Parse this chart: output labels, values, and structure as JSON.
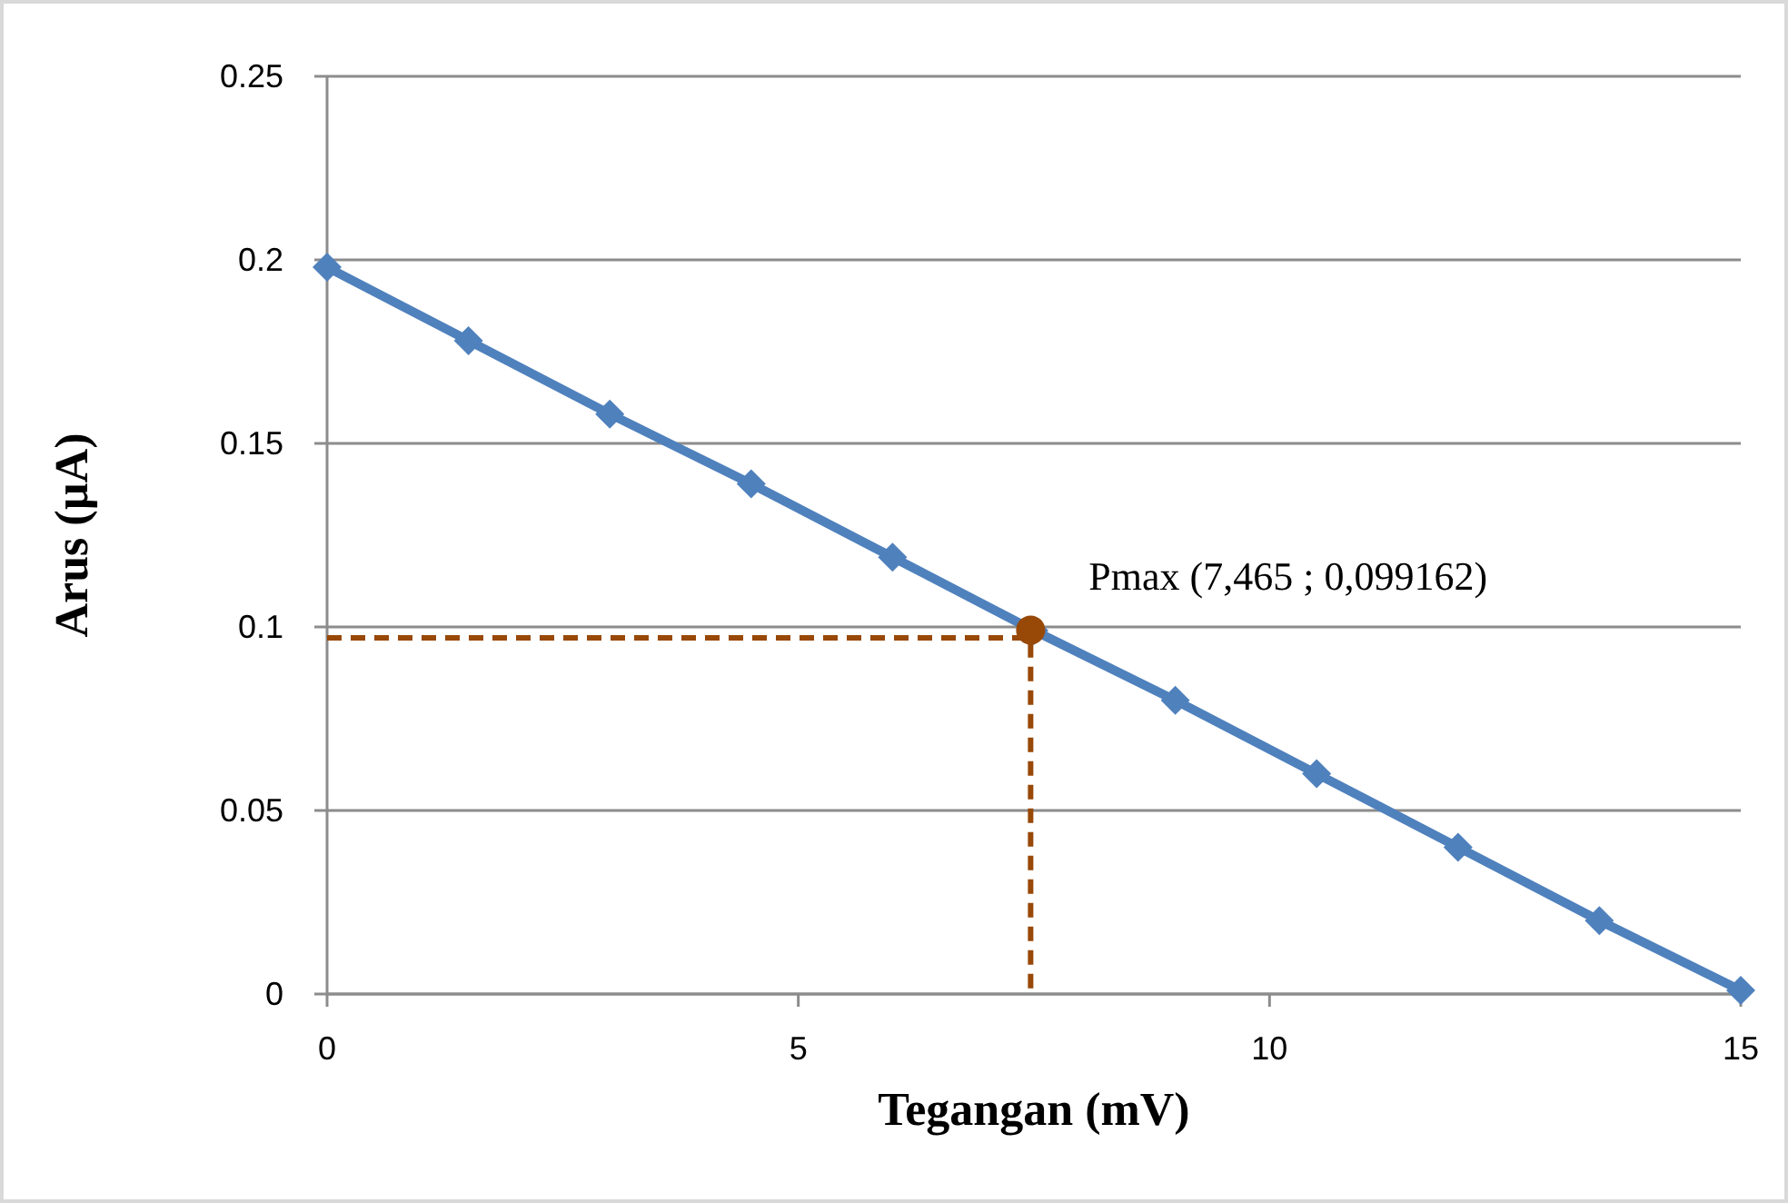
{
  "chart_data": {
    "type": "line",
    "xlabel": "Tegangan (mV)",
    "ylabel": "Arus (µA)",
    "xlim": [
      0,
      15
    ],
    "xticks": [
      0,
      5,
      10,
      15
    ],
    "ylim": [
      0,
      0.25
    ],
    "yticks": [
      0,
      0.05,
      0.1,
      0.15,
      0.2,
      0.25
    ],
    "grid": "y",
    "series": [
      {
        "color": "#4f81bd",
        "marker": "diamond",
        "line_style": "solid",
        "x": [
          0,
          1.5,
          3,
          4.5,
          6,
          7.5,
          9,
          10.5,
          12,
          13.5,
          15
        ],
        "values": [
          0.198,
          0.178,
          0.158,
          0.139,
          0.119,
          0.099,
          0.08,
          0.06,
          0.04,
          0.02,
          0.001
        ]
      },
      {
        "type": "line",
        "color": "#984807",
        "marker": "none",
        "line_style": "dashed",
        "x": [
          0,
          7.465,
          7.465
        ],
        "values": [
          0.097,
          0.097,
          0
        ]
      },
      {
        "type": "scatter",
        "color": "#984807",
        "marker": "circle",
        "x": [
          7.465
        ],
        "values": [
          0.099162
        ]
      }
    ],
    "annotations": [
      {
        "text": "Pmax  (7,465 ; 0,099162)",
        "x": 7.465,
        "y": 0.099162
      }
    ]
  }
}
